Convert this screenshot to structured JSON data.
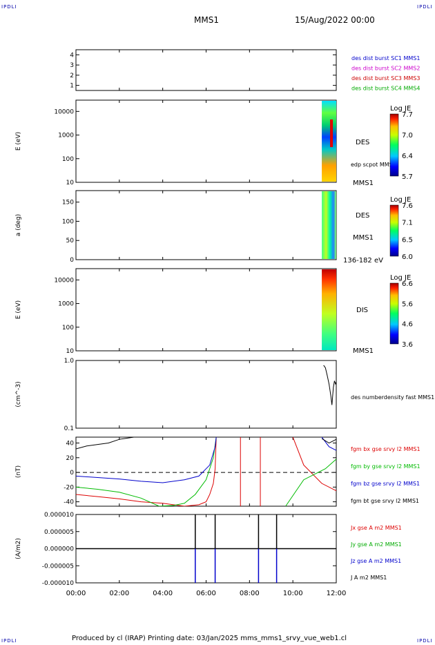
{
  "corners": {
    "tl": "IPDLI",
    "tr": "IPDLI",
    "bl": "IPDLI",
    "br": "IPDLI"
  },
  "header": {
    "title": "MMS1",
    "date": "15/Aug/2022 00:00"
  },
  "footer": {
    "text": "Produced by cl (IRAP)   Printing date: 03/Jan/2025   mms_mms1_srvy_vue_web1.cl"
  },
  "chart_data": [
    {
      "type": "line",
      "title": "",
      "ylabel": "",
      "ylim": [
        0.5,
        4.5
      ],
      "yticks": [
        "1",
        "2",
        "3",
        "4"
      ],
      "legend": [
        {
          "text": "des dist burst SC1 MMS1",
          "color": "#0000cc"
        },
        {
          "text": "des dist burst SC2 MMS2",
          "color": "#cc00cc"
        },
        {
          "text": "des dist burst SC3 MMS3",
          "color": "#cc0000"
        },
        {
          "text": "des dist burst SC4 MMS4",
          "color": "#00aa00"
        }
      ]
    },
    {
      "type": "heatmap",
      "ylabel": "E (eV)",
      "yscale": "log",
      "ylim": [
        10,
        30000
      ],
      "yticks": [
        "10",
        "100",
        "1000",
        "10000"
      ],
      "label": "DES",
      "overlay_label": "edp scpot MMS1",
      "colorbar": {
        "title": "Log JE",
        "ticks": [
          "7.7",
          "7.0",
          "6.4",
          "5.7"
        ],
        "range": [
          5.7,
          7.7
        ]
      }
    },
    {
      "type": "heatmap",
      "ylabel": "a (deg)",
      "ylim": [
        0,
        180
      ],
      "yticks": [
        "0",
        "50",
        "100",
        "150"
      ],
      "label": "DES",
      "label2": "MMS1",
      "energy_range": "136-182 eV",
      "colorbar": {
        "title": "Log JE",
        "ticks": [
          "7.6",
          "7.1",
          "6.5",
          "6.0"
        ],
        "range": [
          6.0,
          7.6
        ]
      }
    },
    {
      "type": "heatmap",
      "ylabel": "E (eV)",
      "yscale": "log",
      "ylim": [
        10,
        30000
      ],
      "yticks": [
        "10",
        "100",
        "1000",
        "10000"
      ],
      "label": "DIS",
      "colorbar": {
        "title": "Log JE",
        "ticks": [
          "6.6",
          "5.6",
          "4.6",
          "3.6"
        ],
        "range": [
          3.6,
          6.6
        ]
      }
    },
    {
      "type": "line",
      "ylabel": "(cm^-3)",
      "yscale": "log",
      "ylim": [
        0.1,
        1.0
      ],
      "yticks": [
        "0.1",
        "1.0"
      ],
      "series": [
        {
          "name": "des numberdensity fast MMS1",
          "color": "#000000",
          "x": [
            "11:25",
            "11:30",
            "11:35",
            "11:40",
            "11:45",
            "11:48",
            "11:52",
            "11:55",
            "11:58",
            "12:00"
          ],
          "values": [
            0.85,
            0.78,
            0.6,
            0.45,
            0.3,
            0.22,
            0.4,
            0.5,
            0.45,
            0.48
          ]
        }
      ]
    },
    {
      "type": "line",
      "ylabel": "(nT)",
      "ylim": [
        -46,
        48
      ],
      "yticks": [
        "-40",
        "-20",
        "0",
        "20",
        "40"
      ],
      "series": [
        {
          "name": "fgm bx gse srvy l2 MMS1",
          "color": "#dd0000",
          "x": [
            "00:00",
            "01:00",
            "02:00",
            "03:00",
            "04:00",
            "05:00",
            "05:40",
            "06:00",
            "06:10",
            "06:20",
            "06:25",
            "06:28"
          ],
          "values": [
            -30,
            -33,
            -36,
            -40,
            -42,
            -46,
            -44,
            -40,
            -30,
            -15,
            5,
            48
          ]
        },
        {
          "name": "fgm by gse srvy l2 MMS1",
          "color": "#00bb00",
          "x": [
            "00:00",
            "01:00",
            "02:00",
            "03:00",
            "03:50",
            "04:30",
            "05:00",
            "05:30",
            "06:00",
            "06:20",
            "06:28"
          ],
          "values": [
            -20,
            -23,
            -27,
            -35,
            -46,
            -45,
            -42,
            -30,
            -10,
            20,
            48
          ]
        },
        {
          "name": "fgm bz gse srvy l2 MMS1",
          "color": "#0000cc",
          "x": [
            "00:00",
            "01:00",
            "02:00",
            "03:00",
            "04:00",
            "05:00",
            "05:40",
            "06:10",
            "06:25",
            "06:28"
          ],
          "values": [
            -5,
            -7,
            -9,
            -12,
            -14,
            -10,
            -5,
            10,
            35,
            48
          ]
        },
        {
          "name": "fgm bt gse srvy l2 MMS1",
          "color": "#000000",
          "x": [
            "00:00",
            "00:30",
            "01:00",
            "01:30",
            "02:00",
            "02:40"
          ],
          "values": [
            32,
            36,
            38,
            40,
            45,
            48
          ]
        }
      ],
      "reference_line": 0
    },
    {
      "type": "line",
      "ylabel": "(A/m2)",
      "ylim": [
        -1e-05,
        1e-05
      ],
      "yticks": [
        "-0.000010",
        "-0.000005",
        "0.000000",
        "0.000005",
        "0.000010"
      ],
      "series": [
        {
          "name": "Jx gse A m2 MMS1",
          "color": "#dd0000"
        },
        {
          "name": "Jy gse A m2 MMS1",
          "color": "#00aa00"
        },
        {
          "name": "Jz gse A m2 MMS1",
          "color": "#0000cc"
        },
        {
          "name": "J A m2 MMS1",
          "color": "#000000"
        }
      ],
      "xticks": [
        "00:00",
        "02:00",
        "04:00",
        "06:00",
        "08:00",
        "10:00",
        "12:00"
      ]
    }
  ]
}
